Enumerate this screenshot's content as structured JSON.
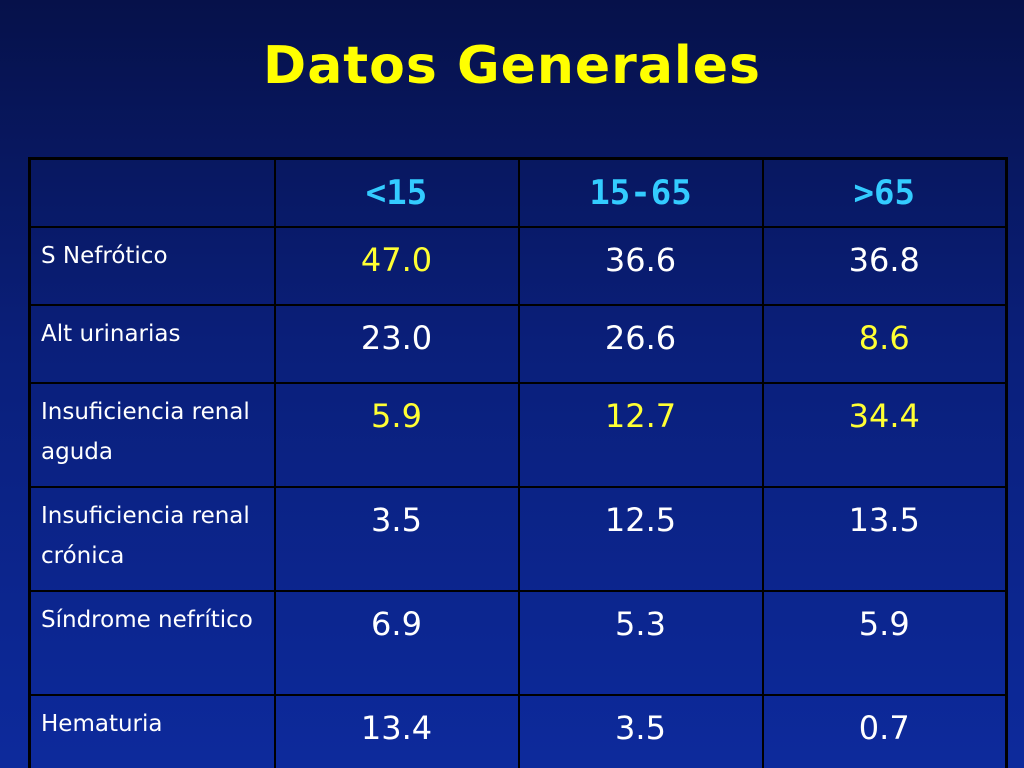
{
  "title": "Datos Generales",
  "table": {
    "headers": [
      "",
      "<15",
      "15-65",
      ">65"
    ],
    "rows": [
      {
        "label": "S Nefrótico",
        "values": [
          "47.0",
          "36.6",
          "36.8"
        ]
      },
      {
        "label": "Alt urinarias",
        "values": [
          "23.0",
          "26.6",
          "8.6"
        ]
      },
      {
        "label": "Insuficiencia renal aguda",
        "values": [
          "5.9",
          "12.7",
          "34.4"
        ]
      },
      {
        "label": "Insuficiencia renal crónica",
        "values": [
          "3.5",
          "12.5",
          "13.5"
        ]
      },
      {
        "label": "Síndrome nefrítico",
        "values": [
          "6.9",
          "5.3",
          "5.9"
        ]
      },
      {
        "label": "Hematuria",
        "values": [
          "13.4",
          "3.5",
          "0.7"
        ]
      }
    ]
  },
  "colors": {
    "background": "#0a1f7a",
    "title": "#ffff00",
    "header_text": "#33ccff",
    "label_text": "#ffffff",
    "highlight_value": "#ffff33",
    "normal_value": "#ffffff",
    "grid_lines": "#000000"
  }
}
